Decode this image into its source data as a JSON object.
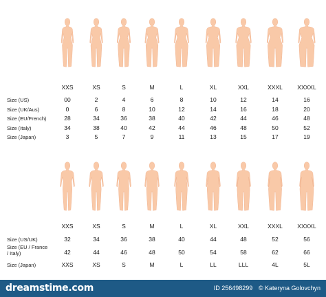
{
  "colors": {
    "skin": "#f9c9a8",
    "skin_shade": "#efb08c",
    "footer": "#1e5a86"
  },
  "women": {
    "sizes": [
      "XXS",
      "XS",
      "S",
      "M",
      "L",
      "XL",
      "XXL",
      "XXXL",
      "XXXXL"
    ],
    "rows": [
      {
        "label": "Size (US)",
        "values": [
          "00",
          "2",
          "4",
          "6",
          "8",
          "10",
          "12",
          "14",
          "16"
        ]
      },
      {
        "label": "Size (UK/Aus)",
        "values": [
          "0",
          "6",
          "8",
          "10",
          "12",
          "14",
          "16",
          "18",
          "20"
        ]
      },
      {
        "label": "Size (EU/French)",
        "values": [
          "28",
          "34",
          "36",
          "38",
          "40",
          "42",
          "44",
          "46",
          "48"
        ]
      },
      {
        "label": "Size (Italy)",
        "values": [
          "34",
          "38",
          "40",
          "42",
          "44",
          "46",
          "48",
          "50",
          "52"
        ]
      },
      {
        "label": "Size (Japan)",
        "values": [
          "3",
          "5",
          "7",
          "9",
          "11",
          "13",
          "15",
          "17",
          "19"
        ]
      }
    ]
  },
  "men": {
    "sizes": [
      "XXS",
      "XS",
      "S",
      "M",
      "L",
      "XL",
      "XXL",
      "XXXL",
      "XXXXL"
    ],
    "rows": [
      {
        "label": "Size (US/UK)",
        "values": [
          "32",
          "34",
          "36",
          "38",
          "40",
          "44",
          "48",
          "52",
          "56"
        ]
      },
      {
        "label": "Size (EU / France / Italy)",
        "values": [
          "42",
          "44",
          "46",
          "48",
          "50",
          "54",
          "58",
          "62",
          "66"
        ]
      },
      {
        "label": "Size (Japan)",
        "values": [
          "XXS",
          "XS",
          "S",
          "M",
          "L",
          "LL",
          "LLL",
          "4L",
          "5L"
        ]
      }
    ]
  },
  "footer": {
    "brand": "dreamstime.com",
    "id": "ID 256498299",
    "author": "© Kateryna Golovchyn"
  }
}
